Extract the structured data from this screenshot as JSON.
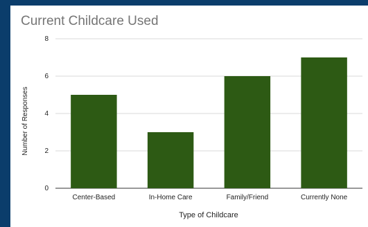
{
  "chart_data": {
    "type": "bar",
    "title": "Current Childcare Used",
    "xlabel": "Type of Childcare",
    "ylabel": "Number of Responses",
    "categories": [
      "Center-Based",
      "In-Home Care",
      "Family/Friend",
      "Currently None"
    ],
    "values": [
      5,
      3,
      6,
      7
    ],
    "ylim": [
      0,
      8
    ],
    "yticks": [
      0,
      2,
      4,
      6,
      8
    ],
    "grid": true,
    "legend": "none",
    "bar_color": "#2d5a14"
  },
  "colors": {
    "frame": "#0b3d6b",
    "background": "#ffffff",
    "grid": "#d9d9d9",
    "axis": "#333333"
  }
}
